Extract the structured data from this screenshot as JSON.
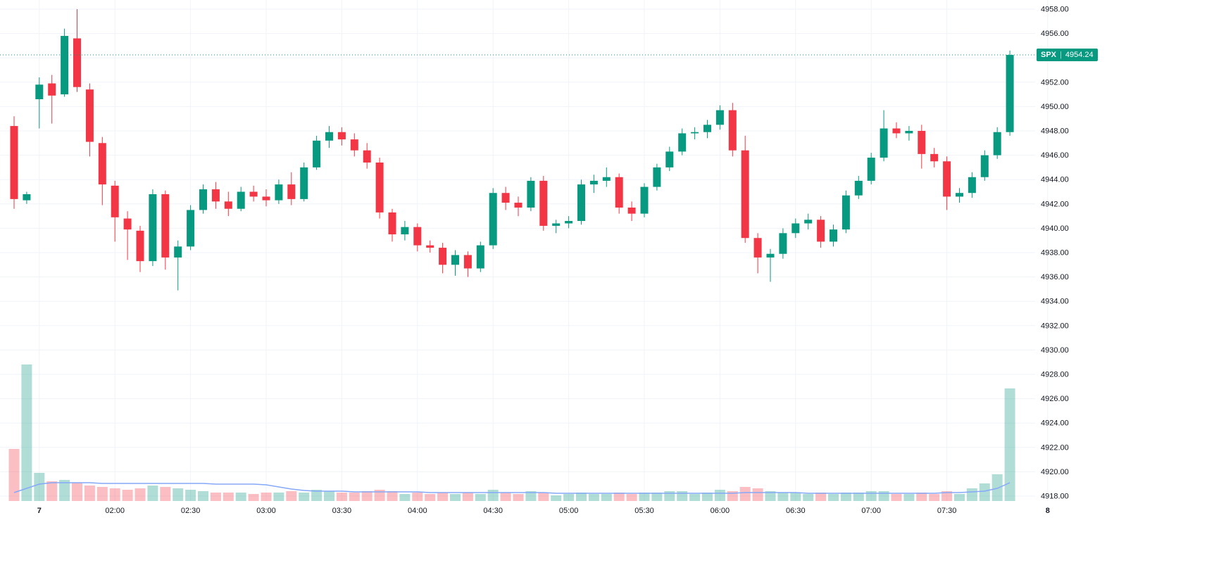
{
  "meta": {
    "symbol": "SPX",
    "last_price": "4954.24",
    "separator": "|"
  },
  "colors": {
    "background": "#ffffff",
    "up": "#089981",
    "down": "#f23645",
    "volume_up": "rgba(8,153,129,0.32)",
    "volume_down": "rgba(242,54,69,0.32)",
    "grid": "#f0f3fa",
    "axis_text": "#131722",
    "volume_ma_line": "#85a8f8",
    "price_line": "#089981",
    "badge_bg": "#089981",
    "badge_text": "#ffffff"
  },
  "chart_data": {
    "type": "candlestick",
    "symbol": "SPX",
    "interval": "5-minute",
    "last_price": 4954.24,
    "legend_position": "none",
    "grid": true,
    "y_axis": {
      "min": 4918,
      "max": 4958,
      "step": 2,
      "labels": [
        "4958.00",
        "4956.00",
        "4954.00",
        "4952.00",
        "4950.00",
        "4948.00",
        "4946.00",
        "4944.00",
        "4942.00",
        "4940.00",
        "4938.00",
        "4936.00",
        "4934.00",
        "4932.00",
        "4930.00",
        "4928.00",
        "4926.00",
        "4924.00",
        "4922.00",
        "4920.00",
        "4918.00"
      ]
    },
    "x_ticks": [
      {
        "label": "7",
        "index": 2,
        "day": true
      },
      {
        "label": "02:00",
        "index": 8
      },
      {
        "label": "02:30",
        "index": 14
      },
      {
        "label": "03:00",
        "index": 20
      },
      {
        "label": "03:30",
        "index": 26
      },
      {
        "label": "04:00",
        "index": 32
      },
      {
        "label": "04:30",
        "index": 38
      },
      {
        "label": "05:00",
        "index": 44
      },
      {
        "label": "05:30",
        "index": 50
      },
      {
        "label": "06:00",
        "index": 56
      },
      {
        "label": "06:30",
        "index": 62
      },
      {
        "label": "07:00",
        "index": 68
      },
      {
        "label": "07:30",
        "index": 74
      },
      {
        "label": "8",
        "index": 82,
        "day": true
      }
    ],
    "columns": [
      "time",
      "open",
      "high",
      "low",
      "close",
      "volume_rel"
    ],
    "candles": [
      [
        "01:20",
        4948.4,
        4949.2,
        4941.6,
        4942.4,
        74
      ],
      [
        "01:25",
        4942.3,
        4943.0,
        4942.0,
        4942.8,
        194
      ],
      [
        "01:30",
        4950.6,
        4952.4,
        4948.2,
        4951.8,
        40
      ],
      [
        "01:35",
        4951.9,
        4952.6,
        4948.6,
        4950.9,
        28
      ],
      [
        "01:40",
        4951.0,
        4956.4,
        4950.8,
        4955.8,
        30
      ],
      [
        "01:45",
        4955.6,
        4958.0,
        4951.2,
        4951.6,
        26
      ],
      [
        "01:50",
        4951.4,
        4951.9,
        4945.9,
        4947.1,
        22
      ],
      [
        "01:55",
        4947.0,
        4947.5,
        4941.9,
        4943.6,
        20
      ],
      [
        "02:00",
        4943.5,
        4943.9,
        4938.9,
        4940.9,
        18
      ],
      [
        "02:05",
        4940.8,
        4941.4,
        4937.4,
        4939.9,
        16
      ],
      [
        "02:10",
        4939.8,
        4940.2,
        4936.4,
        4937.3,
        18
      ],
      [
        "02:15",
        4937.3,
        4943.2,
        4936.9,
        4942.8,
        22
      ],
      [
        "02:20",
        4942.8,
        4943.1,
        4936.6,
        4937.6,
        20
      ],
      [
        "02:25",
        4937.6,
        4939.0,
        4934.9,
        4938.5,
        18
      ],
      [
        "02:30",
        4938.5,
        4941.9,
        4938.2,
        4941.5,
        16
      ],
      [
        "02:35",
        4941.5,
        4943.6,
        4941.2,
        4943.2,
        14
      ],
      [
        "02:40",
        4943.2,
        4943.8,
        4941.6,
        4942.2,
        12
      ],
      [
        "02:45",
        4942.2,
        4943.0,
        4941.0,
        4941.6,
        12
      ],
      [
        "02:50",
        4941.6,
        4943.4,
        4941.4,
        4943.0,
        12
      ],
      [
        "02:55",
        4943.0,
        4943.5,
        4942.2,
        4942.6,
        10
      ],
      [
        "03:00",
        4942.6,
        4943.2,
        4941.8,
        4942.3,
        12
      ],
      [
        "03:05",
        4942.3,
        4944.0,
        4942.0,
        4943.6,
        12
      ],
      [
        "03:10",
        4943.6,
        4944.6,
        4941.9,
        4942.4,
        14
      ],
      [
        "03:15",
        4942.4,
        4945.4,
        4942.2,
        4945.0,
        12
      ],
      [
        "03:20",
        4945.0,
        4947.6,
        4944.8,
        4947.2,
        16
      ],
      [
        "03:25",
        4947.2,
        4948.4,
        4946.6,
        4947.9,
        14
      ],
      [
        "03:30",
        4947.9,
        4948.3,
        4946.8,
        4947.3,
        12
      ],
      [
        "03:35",
        4947.3,
        4947.8,
        4945.9,
        4946.4,
        12
      ],
      [
        "03:40",
        4946.4,
        4947.0,
        4944.9,
        4945.4,
        14
      ],
      [
        "03:45",
        4945.4,
        4945.8,
        4940.8,
        4941.3,
        16
      ],
      [
        "03:50",
        4941.3,
        4941.6,
        4938.9,
        4939.5,
        14
      ],
      [
        "03:55",
        4939.5,
        4940.6,
        4939.0,
        4940.1,
        10
      ],
      [
        "04:00",
        4940.1,
        4940.4,
        4938.1,
        4938.6,
        12
      ],
      [
        "04:05",
        4938.6,
        4939.0,
        4938.0,
        4938.4,
        10
      ],
      [
        "04:10",
        4938.4,
        4938.8,
        4936.3,
        4937.0,
        12
      ],
      [
        "04:15",
        4937.0,
        4938.2,
        4936.1,
        4937.8,
        10
      ],
      [
        "04:20",
        4937.8,
        4938.1,
        4936.0,
        4936.7,
        12
      ],
      [
        "04:25",
        4936.7,
        4938.9,
        4936.4,
        4938.6,
        10
      ],
      [
        "04:30",
        4938.6,
        4943.3,
        4938.3,
        4942.9,
        16
      ],
      [
        "04:35",
        4942.9,
        4943.4,
        4941.5,
        4942.1,
        12
      ],
      [
        "04:40",
        4942.1,
        4942.6,
        4941.0,
        4941.7,
        10
      ],
      [
        "04:45",
        4941.7,
        4944.2,
        4941.4,
        4943.9,
        14
      ],
      [
        "04:50",
        4943.9,
        4944.3,
        4939.8,
        4940.2,
        12
      ],
      [
        "04:55",
        4940.2,
        4940.7,
        4939.6,
        4940.4,
        8
      ],
      [
        "05:00",
        4940.4,
        4941.0,
        4940.0,
        4940.6,
        10
      ],
      [
        "05:05",
        4940.6,
        4944.0,
        4940.3,
        4943.6,
        12
      ],
      [
        "05:10",
        4943.6,
        4944.4,
        4942.9,
        4943.9,
        10
      ],
      [
        "05:15",
        4943.9,
        4945.0,
        4943.4,
        4944.2,
        10
      ],
      [
        "05:20",
        4944.2,
        4944.5,
        4941.2,
        4941.7,
        12
      ],
      [
        "05:25",
        4941.7,
        4942.2,
        4940.6,
        4941.2,
        10
      ],
      [
        "05:30",
        4941.2,
        4943.7,
        4940.9,
        4943.4,
        12
      ],
      [
        "05:35",
        4943.4,
        4945.3,
        4943.1,
        4945.0,
        12
      ],
      [
        "05:40",
        4945.0,
        4946.7,
        4944.7,
        4946.3,
        14
      ],
      [
        "05:45",
        4946.3,
        4948.2,
        4946.0,
        4947.8,
        14
      ],
      [
        "05:50",
        4947.8,
        4948.3,
        4947.3,
        4947.9,
        10
      ],
      [
        "05:55",
        4947.9,
        4948.9,
        4947.4,
        4948.5,
        12
      ],
      [
        "06:00",
        4948.5,
        4950.1,
        4948.1,
        4949.7,
        16
      ],
      [
        "06:05",
        4949.7,
        4950.3,
        4945.9,
        4946.4,
        14
      ],
      [
        "06:10",
        4946.4,
        4947.6,
        4938.8,
        4939.2,
        20
      ],
      [
        "06:15",
        4939.2,
        4939.6,
        4936.3,
        4937.6,
        18
      ],
      [
        "06:20",
        4937.6,
        4938.3,
        4935.6,
        4937.9,
        14
      ],
      [
        "06:25",
        4937.9,
        4940.0,
        4937.5,
        4939.6,
        12
      ],
      [
        "06:30",
        4939.6,
        4940.8,
        4939.2,
        4940.4,
        12
      ],
      [
        "06:35",
        4940.4,
        4941.2,
        4939.9,
        4940.7,
        10
      ],
      [
        "06:40",
        4940.7,
        4941.0,
        4938.4,
        4938.9,
        12
      ],
      [
        "06:45",
        4938.9,
        4940.3,
        4938.5,
        4939.9,
        10
      ],
      [
        "06:50",
        4939.9,
        4943.1,
        4939.6,
        4942.7,
        12
      ],
      [
        "06:55",
        4942.7,
        4944.3,
        4942.4,
        4943.9,
        12
      ],
      [
        "07:00",
        4943.9,
        4946.2,
        4943.6,
        4945.8,
        14
      ],
      [
        "07:05",
        4945.8,
        4949.7,
        4945.5,
        4948.2,
        14
      ],
      [
        "07:10",
        4948.2,
        4948.7,
        4947.4,
        4947.8,
        10
      ],
      [
        "07:15",
        4947.8,
        4948.4,
        4947.2,
        4948.0,
        10
      ],
      [
        "07:20",
        4948.0,
        4948.5,
        4944.9,
        4946.1,
        12
      ],
      [
        "07:25",
        4946.1,
        4946.6,
        4945.0,
        4945.5,
        10
      ],
      [
        "07:30",
        4945.5,
        4945.9,
        4941.5,
        4942.6,
        14
      ],
      [
        "07:35",
        4942.6,
        4943.3,
        4942.1,
        4942.9,
        10
      ],
      [
        "07:40",
        4942.9,
        4944.6,
        4942.5,
        4944.2,
        18
      ],
      [
        "07:45",
        4944.2,
        4946.4,
        4943.9,
        4946.0,
        25
      ],
      [
        "07:50",
        4946.0,
        4948.3,
        4945.7,
        4947.9,
        38
      ],
      [
        "07:55",
        4947.9,
        4954.6,
        4947.6,
        4954.24,
        160
      ]
    ],
    "volume_ma_rel": [
      12,
      18,
      24,
      26,
      26,
      26,
      26,
      25,
      25,
      25,
      25,
      25,
      25,
      25,
      25,
      25,
      24,
      24,
      24,
      24,
      23,
      20,
      17,
      15,
      14,
      14,
      14,
      13,
      13,
      13,
      13,
      13,
      13,
      12,
      12,
      12,
      12,
      12,
      12,
      12,
      12,
      12,
      12,
      11,
      11,
      11,
      11,
      11,
      11,
      11,
      11,
      11,
      11,
      11,
      11,
      11,
      11,
      11,
      12,
      12,
      12,
      12,
      12,
      11,
      11,
      11,
      11,
      11,
      11,
      11,
      11,
      11,
      11,
      11,
      12,
      12,
      13,
      14,
      18,
      26
    ]
  }
}
